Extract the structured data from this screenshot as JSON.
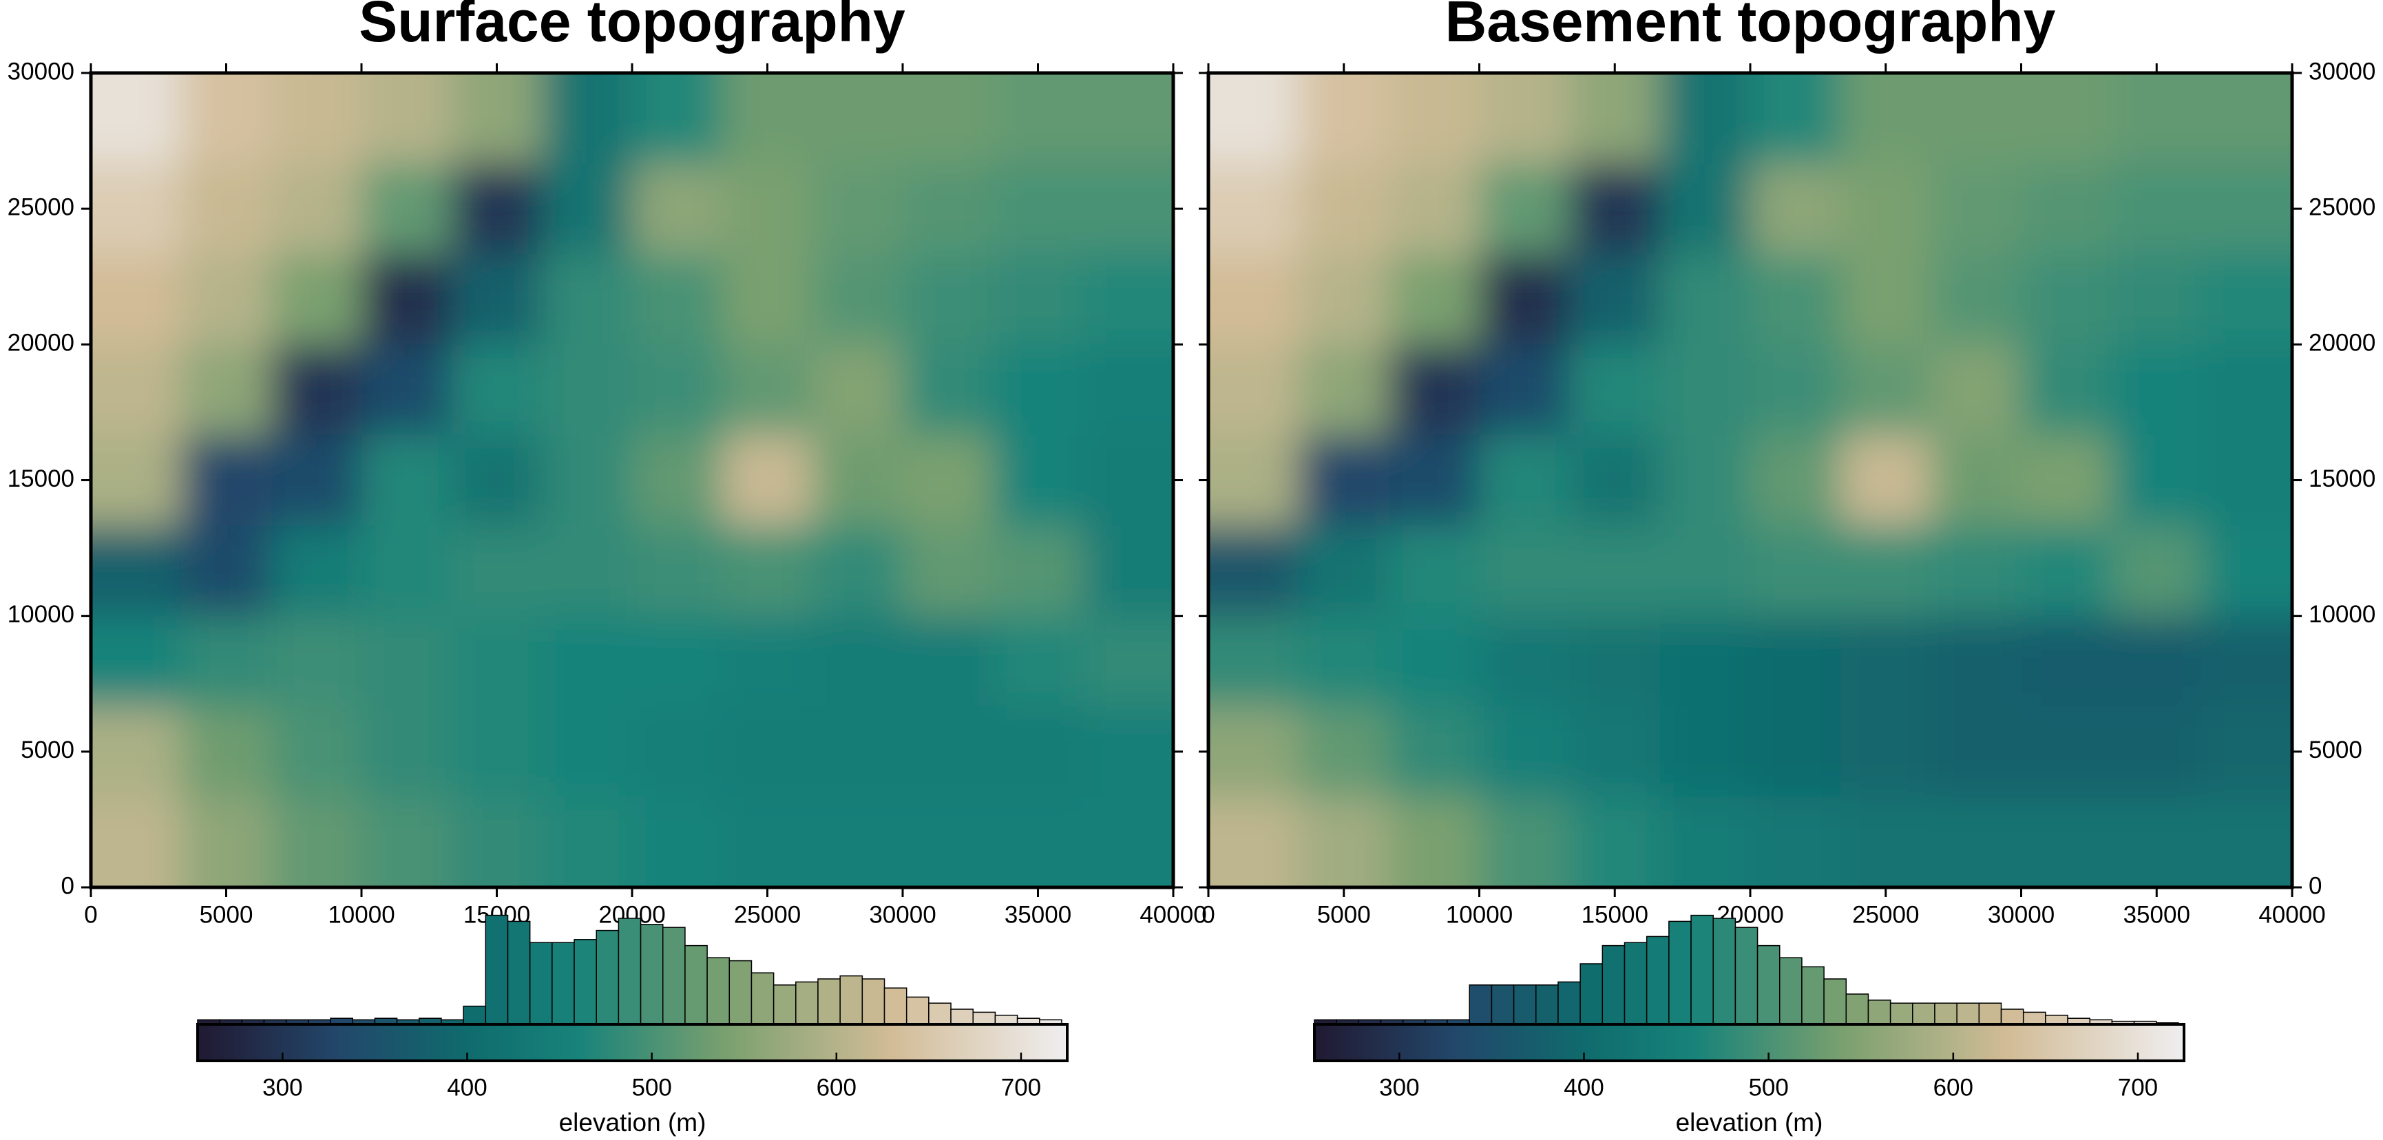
{
  "chart_data": [
    {
      "type": "heatmap",
      "title": "Surface topography",
      "x": [
        1667,
        5000,
        8333,
        11667,
        15000,
        18333,
        21667,
        25000,
        28333,
        31667,
        35000,
        38333
      ],
      "y": [
        28333,
        25000,
        21667,
        18333,
        15000,
        11667,
        8333,
        5000,
        1667
      ],
      "values": [
        [
          700,
          640,
          620,
          600,
          560,
          420,
          470,
          530,
          530,
          530,
          520,
          520
        ],
        [
          660,
          620,
          600,
          520,
          300,
          420,
          560,
          540,
          520,
          510,
          500,
          500
        ],
        [
          630,
          600,
          540,
          290,
          380,
          480,
          500,
          540,
          510,
          490,
          480,
          470
        ],
        [
          610,
          560,
          300,
          340,
          470,
          480,
          490,
          520,
          550,
          480,
          460,
          450
        ],
        [
          590,
          330,
          340,
          470,
          420,
          480,
          520,
          620,
          530,
          540,
          460,
          440
        ],
        [
          380,
          340,
          440,
          470,
          480,
          480,
          490,
          500,
          480,
          520,
          510,
          440
        ],
        [
          460,
          480,
          490,
          480,
          470,
          460,
          460,
          450,
          440,
          440,
          470,
          480
        ],
        [
          590,
          530,
          500,
          480,
          470,
          460,
          450,
          440,
          440,
          440,
          440,
          450
        ],
        [
          610,
          560,
          520,
          500,
          480,
          470,
          460,
          450,
          450,
          450,
          450,
          450
        ]
      ],
      "xlim": [
        0,
        40000
      ],
      "ylim": [
        0,
        30000
      ],
      "xticks": [
        0,
        5000,
        10000,
        15000,
        20000,
        25000,
        30000,
        35000,
        40000
      ],
      "yticks": [
        0,
        5000,
        10000,
        15000,
        20000,
        25000,
        30000
      ],
      "y_axis_side": "left",
      "colorscale": [
        [
          254,
          "#211932"
        ],
        [
          330,
          "#22476a"
        ],
        [
          400,
          "#0f6b6d"
        ],
        [
          460,
          "#18837a"
        ],
        [
          540,
          "#7aa06f"
        ],
        [
          630,
          "#d2bc97"
        ],
        [
          725,
          "#efeeef"
        ]
      ],
      "colorbar": {
        "label": "elevation (m)",
        "lim": [
          254,
          725
        ],
        "ticks": [
          300,
          400,
          500,
          600,
          700
        ]
      },
      "histogram": {
        "bins": [
          254,
          266,
          278,
          290,
          302,
          314,
          326,
          338,
          350,
          362,
          374,
          386,
          398,
          410,
          422,
          434,
          446,
          458,
          470,
          482,
          494,
          506,
          518,
          530,
          542,
          554,
          566,
          578,
          590,
          602,
          614,
          626,
          638,
          650,
          662,
          674,
          686,
          698,
          710,
          722
        ],
        "counts": [
          3,
          3,
          3,
          3,
          3,
          3,
          4,
          3,
          4,
          3,
          4,
          3,
          12,
          72,
          68,
          54,
          54,
          56,
          62,
          70,
          66,
          64,
          52,
          44,
          42,
          34,
          26,
          28,
          30,
          32,
          30,
          24,
          18,
          14,
          10,
          8,
          6,
          4,
          3
        ]
      }
    },
    {
      "type": "heatmap",
      "title": "Basement topography",
      "x": [
        1667,
        5000,
        8333,
        11667,
        15000,
        18333,
        21667,
        25000,
        28333,
        31667,
        35000,
        38333
      ],
      "y": [
        28333,
        25000,
        21667,
        18333,
        15000,
        11667,
        8333,
        5000,
        1667
      ],
      "values": [
        [
          700,
          640,
          620,
          600,
          560,
          420,
          470,
          530,
          530,
          530,
          520,
          520
        ],
        [
          660,
          620,
          600,
          520,
          300,
          420,
          560,
          540,
          520,
          510,
          500,
          500
        ],
        [
          630,
          600,
          540,
          290,
          380,
          480,
          500,
          540,
          510,
          490,
          480,
          470
        ],
        [
          610,
          560,
          300,
          340,
          470,
          480,
          490,
          520,
          550,
          480,
          460,
          450
        ],
        [
          590,
          330,
          340,
          470,
          420,
          480,
          520,
          620,
          530,
          540,
          460,
          450
        ],
        [
          360,
          420,
          470,
          480,
          480,
          480,
          490,
          490,
          480,
          470,
          510,
          460
        ],
        [
          480,
          470,
          460,
          430,
          420,
          410,
          400,
          390,
          380,
          370,
          370,
          380
        ],
        [
          560,
          520,
          480,
          450,
          430,
          410,
          400,
          390,
          380,
          380,
          380,
          390
        ],
        [
          610,
          580,
          540,
          500,
          470,
          440,
          430,
          420,
          420,
          420,
          420,
          420
        ]
      ],
      "xlim": [
        0,
        40000
      ],
      "ylim": [
        0,
        30000
      ],
      "xticks": [
        0,
        5000,
        10000,
        15000,
        20000,
        25000,
        30000,
        35000,
        40000
      ],
      "yticks": [
        0,
        5000,
        10000,
        15000,
        20000,
        25000,
        30000
      ],
      "y_axis_side": "right",
      "colorscale": [
        [
          254,
          "#211932"
        ],
        [
          330,
          "#22476a"
        ],
        [
          400,
          "#0f6b6d"
        ],
        [
          460,
          "#18837a"
        ],
        [
          540,
          "#7aa06f"
        ],
        [
          630,
          "#d2bc97"
        ],
        [
          725,
          "#efeeef"
        ]
      ],
      "colorbar": {
        "label": "elevation (m)",
        "lim": [
          254,
          725
        ],
        "ticks": [
          300,
          400,
          500,
          600,
          700
        ]
      },
      "histogram": {
        "bins": [
          254,
          266,
          278,
          290,
          302,
          314,
          326,
          338,
          350,
          362,
          374,
          386,
          398,
          410,
          422,
          434,
          446,
          458,
          470,
          482,
          494,
          506,
          518,
          530,
          542,
          554,
          566,
          578,
          590,
          602,
          614,
          626,
          638,
          650,
          662,
          674,
          686,
          698,
          710,
          722
        ],
        "counts": [
          3,
          3,
          3,
          3,
          3,
          3,
          3,
          26,
          26,
          26,
          26,
          28,
          40,
          52,
          54,
          58,
          68,
          72,
          70,
          64,
          52,
          44,
          38,
          30,
          20,
          16,
          14,
          14,
          14,
          14,
          14,
          10,
          8,
          6,
          4,
          3,
          2,
          2,
          1
        ]
      }
    }
  ]
}
